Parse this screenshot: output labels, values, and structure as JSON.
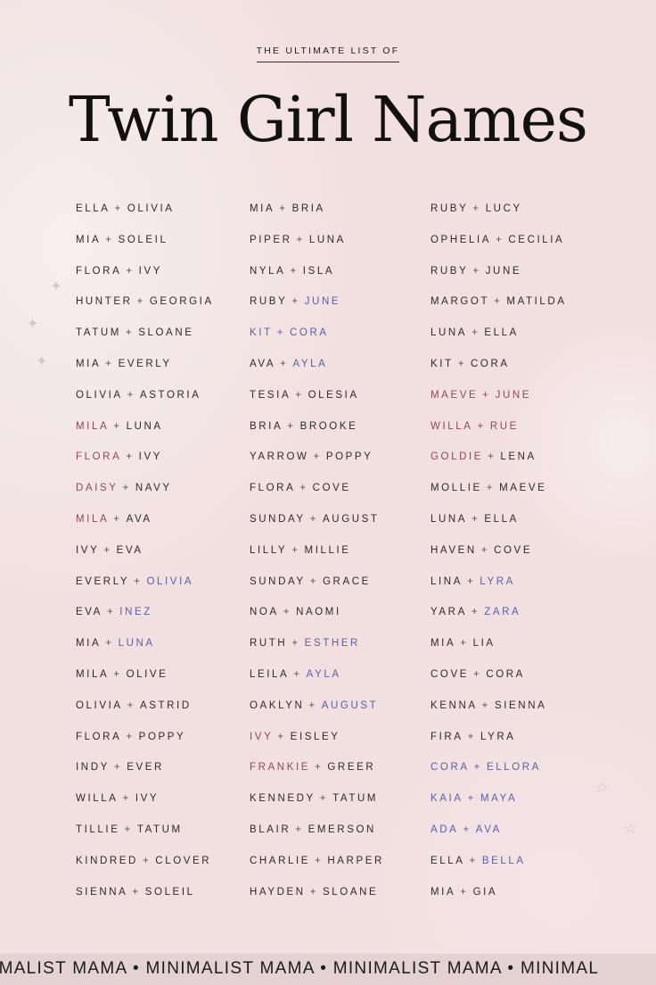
{
  "header": {
    "subtitle": "THE ULTIMATE LIST OF",
    "title": "Twin Girl Names"
  },
  "colors": {
    "default": "#2e2a2b",
    "rose": "#8c4a57",
    "blue": "#5a5fa8"
  },
  "columns": [
    [
      [
        "ELLA",
        "OLIVIA"
      ],
      [
        "MIA",
        "SOLEIL"
      ],
      [
        "FLORA",
        "IVY"
      ],
      [
        "HUNTER",
        "GEORGIA"
      ],
      [
        "TATUM",
        "SLOANE"
      ],
      [
        "MIA",
        "EVERLY"
      ],
      [
        "OLIVIA",
        "ASTORIA"
      ],
      [
        "MILA",
        "LUNA",
        "rose"
      ],
      [
        "FLORA",
        "IVY",
        "rose"
      ],
      [
        "DAISY",
        "NAVY",
        "rose"
      ],
      [
        "MILA",
        "AVA",
        "rose"
      ],
      [
        "IVY",
        "EVA"
      ],
      [
        "EVERLY",
        "OLIVIA",
        "",
        "blue"
      ],
      [
        "EVA",
        "INEZ",
        "",
        "blue"
      ],
      [
        "MIA",
        "LUNA",
        "",
        "blue"
      ],
      [
        "MILA",
        "OLIVE"
      ],
      [
        "OLIVIA",
        "ASTRID"
      ],
      [
        "FLORA",
        "POPPY"
      ],
      [
        "INDY",
        "EVER"
      ],
      [
        "WILLA",
        "IVY"
      ],
      [
        "TILLIE",
        "TATUM"
      ],
      [
        "KINDRED",
        "CLOVER"
      ],
      [
        "SIENNA",
        "SOLEIL"
      ]
    ],
    [
      [
        "MIA",
        "BRIA"
      ],
      [
        "PIPER",
        "LUNA"
      ],
      [
        "NYLA",
        "ISLA"
      ],
      [
        "RUBY",
        "JUNE",
        "",
        "blue"
      ],
      [
        "KIT",
        "CORA",
        "blue",
        "blue"
      ],
      [
        "AVA",
        "AYLA",
        "",
        "blue"
      ],
      [
        "TESIA",
        "OLESIA"
      ],
      [
        "BRIA",
        "BROOKE"
      ],
      [
        "YARROW",
        "POPPY"
      ],
      [
        "FLORA",
        "COVE"
      ],
      [
        "SUNDAY",
        "AUGUST"
      ],
      [
        "LILLY",
        "MILLIE"
      ],
      [
        "SUNDAY",
        "GRACE"
      ],
      [
        "NOA",
        "NAOMI"
      ],
      [
        "RUTH",
        "ESTHER",
        "",
        "blue"
      ],
      [
        "LEILA",
        "AYLA",
        "",
        "blue"
      ],
      [
        "OAKLYN",
        "AUGUST",
        "",
        "blue"
      ],
      [
        "IVY",
        "EISLEY",
        "rose"
      ],
      [
        "FRANKIE",
        "GREER",
        "rose"
      ],
      [
        "KENNEDY",
        "TATUM"
      ],
      [
        "BLAIR",
        "EMERSON"
      ],
      [
        "CHARLIE",
        "HARPER"
      ],
      [
        "HAYDEN",
        "SLOANE"
      ]
    ],
    [
      [
        "RUBY",
        "LUCY"
      ],
      [
        "OPHELIA",
        "CECILIA"
      ],
      [
        "RUBY",
        "JUNE"
      ],
      [
        "MARGOT",
        "MATILDA"
      ],
      [
        "LUNA",
        "ELLA"
      ],
      [
        "KIT",
        "CORA"
      ],
      [
        "MAEVE",
        "JUNE",
        "rose",
        "rose"
      ],
      [
        "WILLA",
        "RUE",
        "rose",
        "rose"
      ],
      [
        "GOLDIE",
        "LENA",
        "rose"
      ],
      [
        "MOLLIE",
        "MAEVE"
      ],
      [
        "LUNA",
        "ELLA"
      ],
      [
        "HAVEN",
        "COVE"
      ],
      [
        "LINA",
        "LYRA",
        "",
        "blue"
      ],
      [
        "YARA",
        "ZARA",
        "",
        "blue"
      ],
      [
        "MIA",
        "LIA"
      ],
      [
        "COVE",
        "CORA"
      ],
      [
        "KENNA",
        "SIENNA"
      ],
      [
        "FIRA",
        "LYRA"
      ],
      [
        "CORA",
        "ELLORA",
        "blue",
        "blue"
      ],
      [
        "KAIA",
        "MAYA",
        "blue",
        "blue"
      ],
      [
        "ADA",
        "AVA",
        "blue",
        "blue"
      ],
      [
        "ELLA",
        "BELLA",
        "",
        "blue"
      ],
      [
        "MIA",
        "GIA"
      ]
    ]
  ],
  "separator": "+",
  "footer": {
    "text": "IMALIST MAMA • MINIMALIST MAMA • MINIMALIST MAMA • MINIMAL"
  }
}
